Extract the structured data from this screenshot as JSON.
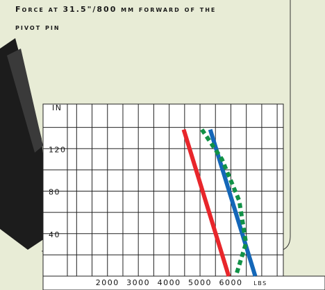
{
  "chart_data": {
    "type": "line",
    "title": "Force at 31.5\"/800 mm forward of the",
    "subtitle": "pivot pin",
    "x_label": "lbs",
    "y_label": "IN",
    "xlim": [
      700,
      7700
    ],
    "ylim": [
      0,
      162
    ],
    "xticks": [
      2000,
      3000,
      4000,
      5000,
      6000
    ],
    "yticks": [
      40,
      80,
      120
    ],
    "xgrid": [
      1000,
      1500,
      2000,
      2500,
      3000,
      3500,
      4000,
      4500,
      5000,
      5500,
      6000,
      6500,
      7000,
      7500
    ],
    "ygrid": [
      20,
      40,
      60,
      80,
      100,
      120,
      140
    ],
    "series": [
      {
        "color": "#e8262b",
        "style": "solid",
        "x": [
          4470,
          5930
        ],
        "values": [
          138,
          0
        ]
      },
      {
        "color": "#1467b8",
        "style": "solid",
        "x": [
          5330,
          6790
        ],
        "values": [
          138,
          0
        ]
      },
      {
        "color": "#119147",
        "style": "dotted",
        "x": [
          5060,
          5710,
          6270,
          6490,
          6160
        ],
        "values": [
          138,
          110,
          71,
          31,
          0
        ]
      }
    ]
  }
}
